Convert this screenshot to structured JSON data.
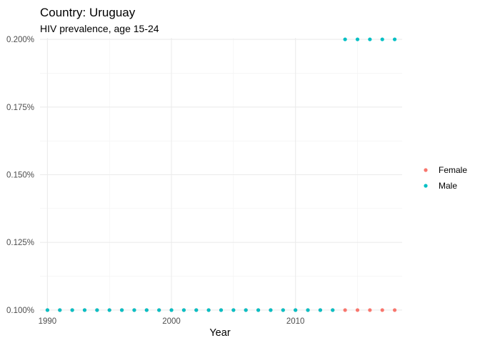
{
  "chart_data": {
    "type": "scatter",
    "title": "Country: Uruguay",
    "subtitle": "HIV prevalence, age 15-24",
    "xlabel": "Year",
    "ylabel": "",
    "xlim": [
      1989.4,
      2018.6
    ],
    "ylim": [
      0.09945,
      0.20055
    ],
    "x_ticks": [
      1990,
      2000,
      2010
    ],
    "x_tick_labels": [
      "1990",
      "2000",
      "2010"
    ],
    "y_ticks": [
      0.1,
      0.125,
      0.15,
      0.175,
      0.2
    ],
    "y_tick_labels": [
      "0.100%",
      "0.125%",
      "0.150%",
      "0.175%",
      "0.200%"
    ],
    "grid": true,
    "legend_position": "right",
    "series": [
      {
        "name": "Female",
        "color": "#F8766D",
        "x": [
          1990,
          1991,
          1992,
          1993,
          1994,
          1995,
          1996,
          1997,
          1998,
          1999,
          2000,
          2001,
          2002,
          2003,
          2004,
          2005,
          2006,
          2007,
          2008,
          2009,
          2010,
          2011,
          2012,
          2013,
          2014,
          2015,
          2016,
          2017,
          2018
        ],
        "y": [
          0.1,
          0.1,
          0.1,
          0.1,
          0.1,
          0.1,
          0.1,
          0.1,
          0.1,
          0.1,
          0.1,
          0.1,
          0.1,
          0.1,
          0.1,
          0.1,
          0.1,
          0.1,
          0.1,
          0.1,
          0.1,
          0.1,
          0.1,
          0.1,
          0.1,
          0.1,
          0.1,
          0.1,
          0.1
        ]
      },
      {
        "name": "Male",
        "color": "#00BFC4",
        "x": [
          1990,
          1991,
          1992,
          1993,
          1994,
          1995,
          1996,
          1997,
          1998,
          1999,
          2000,
          2001,
          2002,
          2003,
          2004,
          2005,
          2006,
          2007,
          2008,
          2009,
          2010,
          2011,
          2012,
          2013,
          2014,
          2015,
          2016,
          2017,
          2018
        ],
        "y": [
          0.1,
          0.1,
          0.1,
          0.1,
          0.1,
          0.1,
          0.1,
          0.1,
          0.1,
          0.1,
          0.1,
          0.1,
          0.1,
          0.1,
          0.1,
          0.1,
          0.1,
          0.1,
          0.1,
          0.1,
          0.1,
          0.1,
          0.1,
          0.1,
          0.2,
          0.2,
          0.2,
          0.2,
          0.2
        ]
      }
    ]
  }
}
